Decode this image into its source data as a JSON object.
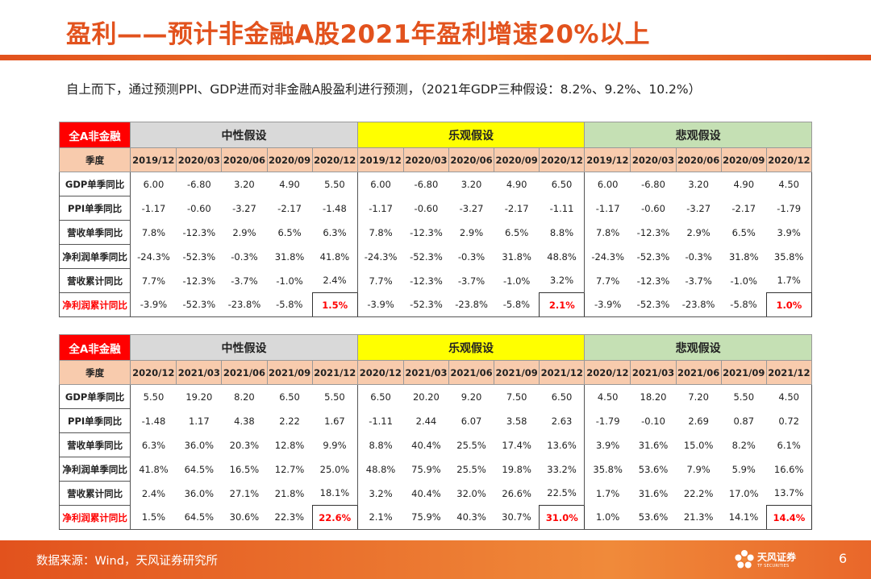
{
  "title": "盈利——预计非金融A股2021年盈利增速20%以上",
  "subtitle": "自上而下，通过预测PPI、GDP进而对非金融A股盈利进行预测，（2021年GDP三种假设：8.2%、9.2%、10.2%）",
  "tables": [
    {
      "corner": "全A非金融",
      "groups": [
        "中性假设",
        "乐观假设",
        "悲观假设"
      ],
      "quarter_label": "季度",
      "quarters": [
        "2019/12",
        "2020/03",
        "2020/06",
        "2020/09",
        "2020/12"
      ],
      "rows": [
        {
          "label": "GDP单季同比",
          "values": [
            "6.00",
            "-6.80",
            "3.20",
            "4.90",
            "5.50",
            "6.00",
            "-6.80",
            "3.20",
            "4.90",
            "6.50",
            "6.00",
            "-6.80",
            "3.20",
            "4.90",
            "4.50"
          ]
        },
        {
          "label": "PPI单季同比",
          "values": [
            "-1.17",
            "-0.60",
            "-3.27",
            "-2.17",
            "-1.48",
            "-1.17",
            "-0.60",
            "-3.27",
            "-2.17",
            "-1.11",
            "-1.17",
            "-0.60",
            "-3.27",
            "-2.17",
            "-1.79"
          ]
        },
        {
          "label": "营收单季同比",
          "values": [
            "7.8%",
            "-12.3%",
            "2.9%",
            "6.5%",
            "6.3%",
            "7.8%",
            "-12.3%",
            "2.9%",
            "6.5%",
            "8.8%",
            "7.8%",
            "-12.3%",
            "2.9%",
            "6.5%",
            "3.9%"
          ]
        },
        {
          "label": "净利润单季同比",
          "values": [
            "-24.3%",
            "-52.3%",
            "-0.3%",
            "31.8%",
            "41.8%",
            "-24.3%",
            "-52.3%",
            "-0.3%",
            "31.8%",
            "48.8%",
            "-24.3%",
            "-52.3%",
            "-0.3%",
            "31.8%",
            "35.8%"
          ]
        },
        {
          "label": "营收累计同比",
          "values": [
            "7.7%",
            "-12.3%",
            "-3.7%",
            "-1.0%",
            "2.4%",
            "7.7%",
            "-12.3%",
            "-3.7%",
            "-1.0%",
            "3.2%",
            "7.7%",
            "-12.3%",
            "-3.7%",
            "-1.0%",
            "1.7%"
          ]
        },
        {
          "label": "净利润累计同比",
          "values": [
            "-3.9%",
            "-52.3%",
            "-23.8%",
            "-5.8%",
            "1.5%",
            "-3.9%",
            "-52.3%",
            "-23.8%",
            "-5.8%",
            "2.1%",
            "-3.9%",
            "-52.3%",
            "-23.8%",
            "-5.8%",
            "1.0%"
          ]
        }
      ]
    },
    {
      "corner": "全A非金融",
      "groups": [
        "中性假设",
        "乐观假设",
        "悲观假设"
      ],
      "quarter_label": "季度",
      "quarters": [
        "2020/12",
        "2021/03",
        "2021/06",
        "2021/09",
        "2021/12"
      ],
      "rows": [
        {
          "label": "GDP单季同比",
          "values": [
            "5.50",
            "19.20",
            "8.20",
            "6.50",
            "5.50",
            "6.50",
            "20.20",
            "9.20",
            "7.50",
            "6.50",
            "4.50",
            "18.20",
            "7.20",
            "5.50",
            "4.50"
          ]
        },
        {
          "label": "PPI单季同比",
          "values": [
            "-1.48",
            "1.17",
            "4.38",
            "2.22",
            "1.67",
            "-1.11",
            "2.44",
            "6.07",
            "3.58",
            "2.63",
            "-1.79",
            "-0.10",
            "2.69",
            "0.87",
            "0.72"
          ]
        },
        {
          "label": "营收单季同比",
          "values": [
            "6.3%",
            "36.0%",
            "20.3%",
            "12.8%",
            "9.9%",
            "8.8%",
            "40.4%",
            "25.5%",
            "17.4%",
            "13.6%",
            "3.9%",
            "31.6%",
            "15.0%",
            "8.2%",
            "6.1%"
          ]
        },
        {
          "label": "净利润单季同比",
          "values": [
            "41.8%",
            "64.5%",
            "16.5%",
            "12.7%",
            "25.0%",
            "48.8%",
            "75.9%",
            "25.5%",
            "19.8%",
            "33.2%",
            "35.8%",
            "53.6%",
            "7.9%",
            "5.9%",
            "16.6%"
          ]
        },
        {
          "label": "营收累计同比",
          "values": [
            "2.4%",
            "36.0%",
            "27.1%",
            "21.8%",
            "18.1%",
            "3.2%",
            "40.4%",
            "32.0%",
            "26.6%",
            "22.5%",
            "1.7%",
            "31.6%",
            "22.2%",
            "17.0%",
            "13.7%"
          ]
        },
        {
          "label": "净利润累计同比",
          "values": [
            "1.5%",
            "64.5%",
            "30.6%",
            "22.3%",
            "22.6%",
            "2.1%",
            "75.9%",
            "40.3%",
            "30.7%",
            "31.0%",
            "1.0%",
            "53.6%",
            "21.3%",
            "14.1%",
            "14.4%"
          ]
        }
      ]
    }
  ],
  "footer": {
    "source": "数据来源：Wind，天风证券研究所",
    "logo_text": "天风证券",
    "logo_sub": "TF SECURITIES",
    "page_number": "6"
  },
  "colors": {
    "accent": "#e2521d",
    "corner": "#ff0000",
    "neutral": "#d9d9d9",
    "optimistic": "#ffff00",
    "pessimistic": "#c5e0b4",
    "quarter_row": "#f8cbad",
    "highlight_text": "#ff0000"
  }
}
